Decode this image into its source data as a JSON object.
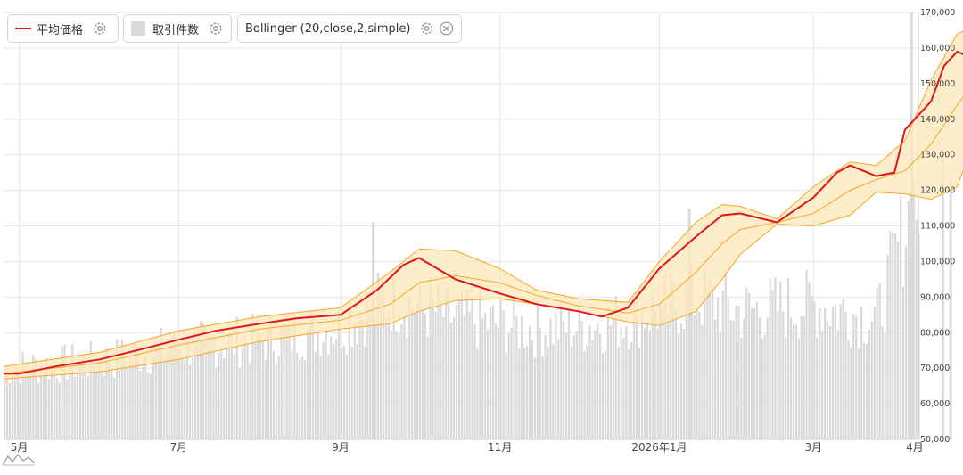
{
  "legend": {
    "price_label": "平均価格",
    "volume_label": "取引件数",
    "bb_label": "Bollinger (20,close,2,simple)",
    "gear_icon": "gear-icon",
    "close_icon": "close-icon"
  },
  "colors": {
    "price": "#e0151a",
    "band_fill": "#fde7b8",
    "band_line": "#f5a623",
    "volume": "#d9d9d9",
    "grid": "#e6e6e6",
    "text": "#444444"
  },
  "chart_data": {
    "type": "line",
    "title": "",
    "x_axis": {
      "ticks": [
        "5月",
        "7月",
        "9月",
        "11月",
        "2026年1月",
        "3月",
        "4月"
      ]
    },
    "y_axis": {
      "position": "right",
      "min": 50000,
      "max": 170000,
      "ticks": [
        "50,000",
        "60,000",
        "70,000",
        "80,000",
        "90,000",
        "100,000",
        "110,000",
        "120,000",
        "130,000",
        "140,000",
        "150,000",
        "160,000",
        "170,000"
      ]
    },
    "grid": true,
    "legend_position": "top-left",
    "x_start": "2025-04-25",
    "series": [
      {
        "name": "平均価格",
        "type": "line",
        "points": [
          [
            "2025-04-25",
            68500
          ],
          [
            "2025-05-01",
            68500
          ],
          [
            "2025-05-15",
            70500
          ],
          [
            "2025-06-01",
            72500
          ],
          [
            "2025-06-15",
            75000
          ],
          [
            "2025-07-01",
            78000
          ],
          [
            "2025-07-15",
            80500
          ],
          [
            "2025-08-01",
            82500
          ],
          [
            "2025-08-15",
            84000
          ],
          [
            "2025-09-01",
            85000
          ],
          [
            "2025-09-15",
            92000
          ],
          [
            "2025-09-25",
            99000
          ],
          [
            "2025-10-01",
            101000
          ],
          [
            "2025-10-15",
            95000
          ],
          [
            "2025-11-01",
            91000
          ],
          [
            "2025-11-15",
            88000
          ],
          [
            "2025-12-01",
            86000
          ],
          [
            "2025-12-10",
            84500
          ],
          [
            "2025-12-20",
            87000
          ],
          [
            "2026-01-01",
            98000
          ],
          [
            "2026-01-15",
            107000
          ],
          [
            "2026-01-25",
            113000
          ],
          [
            "2026-02-01",
            113500
          ],
          [
            "2026-02-15",
            111000
          ],
          [
            "2026-03-01",
            118000
          ],
          [
            "2026-03-10",
            125000
          ],
          [
            "2026-03-15",
            127000
          ],
          [
            "2026-03-25",
            124000
          ],
          [
            "2026-04-01",
            125000
          ],
          [
            "2026-04-05",
            137000
          ],
          [
            "2026-04-15",
            145000
          ],
          [
            "2026-04-20",
            155000
          ],
          [
            "2026-04-25",
            159000
          ],
          [
            "2026-05-01",
            157000
          ],
          [
            "2026-05-05",
            156000
          ]
        ]
      },
      {
        "name": "Bollinger (20,close,2,simple)",
        "type": "band",
        "upper": [
          [
            "2025-04-25",
            70500
          ],
          [
            "2025-06-01",
            74500
          ],
          [
            "2025-07-01",
            80500
          ],
          [
            "2025-08-01",
            84500
          ],
          [
            "2025-09-01",
            87000
          ],
          [
            "2025-09-20",
            97000
          ],
          [
            "2025-10-01",
            103500
          ],
          [
            "2025-10-15",
            103000
          ],
          [
            "2025-11-01",
            98000
          ],
          [
            "2025-11-15",
            92000
          ],
          [
            "2025-12-01",
            89500
          ],
          [
            "2025-12-20",
            88500
          ],
          [
            "2026-01-01",
            100000
          ],
          [
            "2026-01-15",
            111000
          ],
          [
            "2026-01-25",
            116000
          ],
          [
            "2026-02-01",
            115500
          ],
          [
            "2026-02-15",
            112000
          ],
          [
            "2026-03-01",
            121000
          ],
          [
            "2026-03-15",
            128000
          ],
          [
            "2026-03-25",
            127000
          ],
          [
            "2026-04-05",
            134000
          ],
          [
            "2026-04-15",
            151000
          ],
          [
            "2026-04-25",
            164000
          ],
          [
            "2026-05-05",
            167000
          ]
        ],
        "middle": [
          [
            "2025-04-25",
            68500
          ],
          [
            "2025-06-01",
            71500
          ],
          [
            "2025-07-01",
            76500
          ],
          [
            "2025-08-01",
            81000
          ],
          [
            "2025-09-01",
            83500
          ],
          [
            "2025-09-20",
            88000
          ],
          [
            "2025-10-01",
            94000
          ],
          [
            "2025-10-15",
            96000
          ],
          [
            "2025-11-01",
            94000
          ],
          [
            "2025-11-15",
            90500
          ],
          [
            "2025-12-01",
            87500
          ],
          [
            "2025-12-20",
            85500
          ],
          [
            "2026-01-01",
            88000
          ],
          [
            "2026-01-15",
            97000
          ],
          [
            "2026-01-25",
            105000
          ],
          [
            "2026-02-01",
            109000
          ],
          [
            "2026-02-15",
            111000
          ],
          [
            "2026-03-01",
            113500
          ],
          [
            "2026-03-15",
            120000
          ],
          [
            "2026-03-25",
            123000
          ],
          [
            "2026-04-05",
            125500
          ],
          [
            "2026-04-15",
            133000
          ],
          [
            "2026-04-25",
            144000
          ],
          [
            "2026-05-05",
            154000
          ]
        ],
        "lower": [
          [
            "2025-04-25",
            67000
          ],
          [
            "2025-06-01",
            69000
          ],
          [
            "2025-07-01",
            72500
          ],
          [
            "2025-08-01",
            77500
          ],
          [
            "2025-09-01",
            81000
          ],
          [
            "2025-09-20",
            82500
          ],
          [
            "2025-10-01",
            86000
          ],
          [
            "2025-10-15",
            89000
          ],
          [
            "2025-11-01",
            89500
          ],
          [
            "2025-11-15",
            88000
          ],
          [
            "2025-12-01",
            86000
          ],
          [
            "2025-12-20",
            83000
          ],
          [
            "2026-01-01",
            82000
          ],
          [
            "2026-01-15",
            86000
          ],
          [
            "2026-01-25",
            95000
          ],
          [
            "2026-02-01",
            102000
          ],
          [
            "2026-02-15",
            110500
          ],
          [
            "2026-03-01",
            110000
          ],
          [
            "2026-03-15",
            113000
          ],
          [
            "2026-03-25",
            119500
          ],
          [
            "2026-04-05",
            119000
          ],
          [
            "2026-04-15",
            117500
          ],
          [
            "2026-04-25",
            121000
          ],
          [
            "2026-05-05",
            141000
          ]
        ]
      },
      {
        "name": "取引件数",
        "type": "bar",
        "approx_level": [
          [
            "2025-04-25",
            70000
          ],
          [
            "2025-06-01",
            72000
          ],
          [
            "2025-07-01",
            76000
          ],
          [
            "2025-08-01",
            78000
          ],
          [
            "2025-09-01",
            82000
          ],
          [
            "2025-09-20",
            90000
          ],
          [
            "2025-10-15",
            84000
          ],
          [
            "2025-11-15",
            81000
          ],
          [
            "2025-12-15",
            83000
          ],
          [
            "2026-01-15",
            90000
          ],
          [
            "2026-02-01",
            86000
          ],
          [
            "2026-03-01",
            88000
          ],
          [
            "2026-03-25",
            84000
          ],
          [
            "2026-04-08",
            118000
          ],
          [
            "2026-04-20",
            100000
          ],
          [
            "2026-05-05",
            86000
          ]
        ],
        "peaks": [
          [
            "2026-04-07",
            170000
          ],
          [
            "2026-04-19",
            130000
          ],
          [
            "2026-04-22",
            123000
          ],
          [
            "2025-09-13",
            111000
          ],
          [
            "2026-01-12",
            115000
          ]
        ]
      }
    ]
  }
}
